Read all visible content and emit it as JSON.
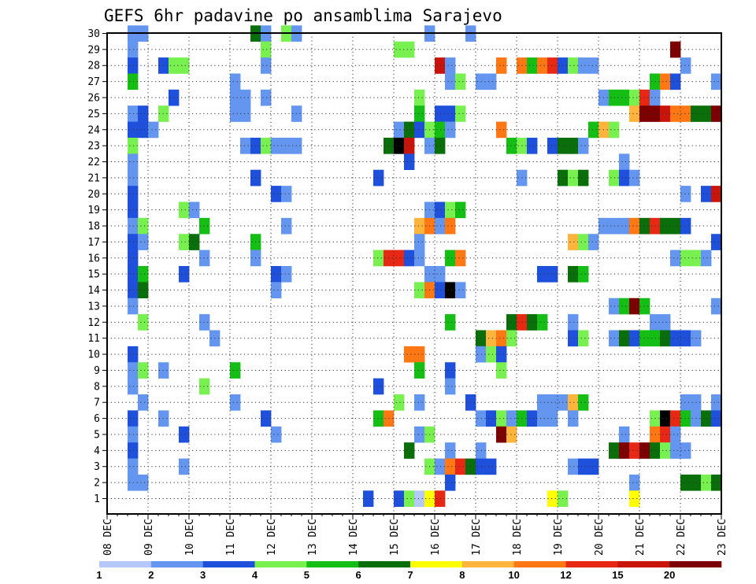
{
  "chart_data": {
    "type": "heatmap",
    "title": "GEFS 6hr padavine po ansamblima Sarajevo",
    "xlabel": "",
    "ylabel": "",
    "x_tick_labels": [
      "08 DEC",
      "09 DEC",
      "10 DEC",
      "11 DEC",
      "12 DEC",
      "13 DEC",
      "14 DEC",
      "15 DEC",
      "16 DEC",
      "17 DEC",
      "18 DEC",
      "19 DEC",
      "20 DEC",
      "21 DEC",
      "22 DEC",
      "23 DEC"
    ],
    "y_tick_labels": [
      "1",
      "2",
      "3",
      "4",
      "5",
      "6",
      "7",
      "8",
      "9",
      "10",
      "11",
      "12",
      "13",
      "14",
      "15",
      "16",
      "17",
      "18",
      "19",
      "20",
      "21",
      "22",
      "23",
      "24",
      "25",
      "26",
      "27",
      "28",
      "29",
      "30"
    ],
    "time_steps_per_day": 4,
    "grid": true,
    "legend": {
      "placement": "bottom",
      "labels": [
        "1",
        "2",
        "3",
        "4",
        "5",
        "6",
        "7",
        "8",
        "10",
        "12",
        "15",
        "20"
      ],
      "colors": [
        "#b4c8fa",
        "#6496f0",
        "#1e50dc",
        "#78f050",
        "#14be14",
        "#0a6e0a",
        "#ffff00",
        "#ffb43c",
        "#ff7814",
        "#e62814",
        "#c8140a",
        "#7d0000"
      ]
    },
    "cells": [
      [
        2,
        30,
        1
      ],
      [
        3,
        30,
        1
      ],
      [
        14,
        30,
        5
      ],
      [
        15,
        30,
        1
      ],
      [
        17,
        30,
        3
      ],
      [
        18,
        30,
        1
      ],
      [
        31,
        30,
        1
      ],
      [
        35,
        30,
        1
      ],
      [
        2,
        29,
        1
      ],
      [
        15,
        29,
        3
      ],
      [
        28,
        29,
        3
      ],
      [
        29,
        29,
        3
      ],
      [
        55,
        29,
        11
      ],
      [
        2,
        28,
        2
      ],
      [
        5,
        28,
        2
      ],
      [
        6,
        28,
        3
      ],
      [
        7,
        28,
        3
      ],
      [
        15,
        28,
        1
      ],
      [
        32,
        28,
        10
      ],
      [
        33,
        28,
        1
      ],
      [
        38,
        28,
        8
      ],
      [
        40,
        28,
        8
      ],
      [
        41,
        28,
        4
      ],
      [
        42,
        28,
        8
      ],
      [
        43,
        28,
        9
      ],
      [
        44,
        28,
        2
      ],
      [
        45,
        28,
        3
      ],
      [
        46,
        28,
        1
      ],
      [
        47,
        28,
        1
      ],
      [
        56,
        28,
        1
      ],
      [
        2,
        27,
        4
      ],
      [
        12,
        27,
        1
      ],
      [
        33,
        27,
        1
      ],
      [
        34,
        27,
        3
      ],
      [
        36,
        27,
        1
      ],
      [
        37,
        27,
        1
      ],
      [
        53,
        27,
        4
      ],
      [
        54,
        27,
        8
      ],
      [
        55,
        27,
        2
      ],
      [
        59,
        27,
        1
      ],
      [
        6,
        26,
        2
      ],
      [
        12,
        26,
        1
      ],
      [
        13,
        26,
        1
      ],
      [
        15,
        26,
        1
      ],
      [
        30,
        26,
        3
      ],
      [
        48,
        26,
        1
      ],
      [
        49,
        26,
        4
      ],
      [
        50,
        26,
        4
      ],
      [
        51,
        26,
        3
      ],
      [
        52,
        26,
        9
      ],
      [
        53,
        26,
        1
      ],
      [
        2,
        25,
        1
      ],
      [
        3,
        25,
        2
      ],
      [
        5,
        25,
        3
      ],
      [
        12,
        25,
        1
      ],
      [
        13,
        25,
        1
      ],
      [
        18,
        25,
        1
      ],
      [
        30,
        25,
        4
      ],
      [
        32,
        25,
        2
      ],
      [
        33,
        25,
        2
      ],
      [
        34,
        25,
        3
      ],
      [
        51,
        25,
        7
      ],
      [
        52,
        25,
        11
      ],
      [
        53,
        25,
        11
      ],
      [
        54,
        25,
        10
      ],
      [
        55,
        25,
        8
      ],
      [
        56,
        25,
        8
      ],
      [
        57,
        25,
        5
      ],
      [
        58,
        25,
        5
      ],
      [
        59,
        25,
        11
      ],
      [
        2,
        24,
        2
      ],
      [
        3,
        24,
        2
      ],
      [
        4,
        24,
        1
      ],
      [
        28,
        24,
        1
      ],
      [
        29,
        24,
        5
      ],
      [
        30,
        24,
        2
      ],
      [
        31,
        24,
        3
      ],
      [
        32,
        24,
        4
      ],
      [
        33,
        24,
        1
      ],
      [
        38,
        24,
        8
      ],
      [
        47,
        24,
        4
      ],
      [
        48,
        24,
        7
      ],
      [
        49,
        24,
        3
      ],
      [
        2,
        23,
        3
      ],
      [
        13,
        23,
        1
      ],
      [
        14,
        23,
        2
      ],
      [
        15,
        23,
        3
      ],
      [
        16,
        23,
        1
      ],
      [
        17,
        23,
        1
      ],
      [
        18,
        23,
        1
      ],
      [
        27,
        23,
        5
      ],
      [
        28,
        23,
        12
      ],
      [
        29,
        23,
        10
      ],
      [
        31,
        23,
        1
      ],
      [
        32,
        23,
        5
      ],
      [
        39,
        23,
        4
      ],
      [
        40,
        23,
        3
      ],
      [
        41,
        23,
        2
      ],
      [
        43,
        23,
        2
      ],
      [
        44,
        23,
        5
      ],
      [
        45,
        23,
        5
      ],
      [
        46,
        23,
        1
      ],
      [
        2,
        22,
        1
      ],
      [
        29,
        22,
        2
      ],
      [
        50,
        22,
        1
      ],
      [
        2,
        21,
        1
      ],
      [
        14,
        21,
        2
      ],
      [
        26,
        21,
        2
      ],
      [
        40,
        21,
        1
      ],
      [
        44,
        21,
        5
      ],
      [
        45,
        21,
        3
      ],
      [
        46,
        21,
        5
      ],
      [
        49,
        21,
        3
      ],
      [
        50,
        21,
        2
      ],
      [
        51,
        21,
        1
      ],
      [
        2,
        20,
        2
      ],
      [
        16,
        20,
        2
      ],
      [
        17,
        20,
        1
      ],
      [
        56,
        20,
        1
      ],
      [
        58,
        20,
        2
      ],
      [
        59,
        20,
        10
      ],
      [
        2,
        19,
        2
      ],
      [
        7,
        19,
        3
      ],
      [
        8,
        19,
        1
      ],
      [
        31,
        19,
        1
      ],
      [
        32,
        19,
        2
      ],
      [
        33,
        19,
        3
      ],
      [
        34,
        19,
        4
      ],
      [
        2,
        18,
        1
      ],
      [
        3,
        18,
        3
      ],
      [
        9,
        18,
        4
      ],
      [
        17,
        18,
        1
      ],
      [
        30,
        18,
        7
      ],
      [
        31,
        18,
        8
      ],
      [
        32,
        18,
        1
      ],
      [
        33,
        18,
        8
      ],
      [
        48,
        18,
        1
      ],
      [
        49,
        18,
        1
      ],
      [
        50,
        18,
        1
      ],
      [
        51,
        18,
        8
      ],
      [
        52,
        18,
        5
      ],
      [
        53,
        18,
        9
      ],
      [
        54,
        18,
        5
      ],
      [
        55,
        18,
        5
      ],
      [
        56,
        18,
        2
      ],
      [
        2,
        17,
        2
      ],
      [
        3,
        17,
        1
      ],
      [
        7,
        17,
        3
      ],
      [
        8,
        17,
        5
      ],
      [
        14,
        17,
        4
      ],
      [
        30,
        17,
        1
      ],
      [
        45,
        17,
        7
      ],
      [
        46,
        17,
        3
      ],
      [
        47,
        17,
        1
      ],
      [
        59,
        17,
        2
      ],
      [
        2,
        16,
        2
      ],
      [
        9,
        16,
        1
      ],
      [
        14,
        16,
        1
      ],
      [
        26,
        16,
        3
      ],
      [
        27,
        16,
        9
      ],
      [
        28,
        16,
        9
      ],
      [
        29,
        16,
        2
      ],
      [
        30,
        16,
        1
      ],
      [
        33,
        16,
        4
      ],
      [
        34,
        16,
        8
      ],
      [
        55,
        16,
        1
      ],
      [
        56,
        16,
        3
      ],
      [
        57,
        16,
        3
      ],
      [
        58,
        16,
        1
      ],
      [
        2,
        15,
        2
      ],
      [
        3,
        15,
        4
      ],
      [
        7,
        15,
        2
      ],
      [
        16,
        15,
        2
      ],
      [
        17,
        15,
        1
      ],
      [
        31,
        15,
        1
      ],
      [
        32,
        15,
        1
      ],
      [
        42,
        15,
        2
      ],
      [
        43,
        15,
        2
      ],
      [
        45,
        15,
        5
      ],
      [
        46,
        15,
        4
      ],
      [
        2,
        14,
        2
      ],
      [
        3,
        14,
        5
      ],
      [
        16,
        14,
        1
      ],
      [
        30,
        14,
        3
      ],
      [
        31,
        14,
        8
      ],
      [
        32,
        14,
        2
      ],
      [
        33,
        14,
        12
      ],
      [
        34,
        14,
        1
      ],
      [
        2,
        13,
        1
      ],
      [
        49,
        13,
        1
      ],
      [
        50,
        13,
        4
      ],
      [
        51,
        13,
        11
      ],
      [
        52,
        13,
        4
      ],
      [
        59,
        13,
        1
      ],
      [
        3,
        12,
        3
      ],
      [
        9,
        12,
        1
      ],
      [
        33,
        12,
        4
      ],
      [
        39,
        12,
        5
      ],
      [
        40,
        12,
        9
      ],
      [
        41,
        12,
        5
      ],
      [
        42,
        12,
        4
      ],
      [
        45,
        12,
        1
      ],
      [
        53,
        12,
        1
      ],
      [
        54,
        12,
        1
      ],
      [
        10,
        11,
        1
      ],
      [
        36,
        11,
        5
      ],
      [
        37,
        11,
        7
      ],
      [
        38,
        11,
        8
      ],
      [
        39,
        11,
        3
      ],
      [
        45,
        11,
        2
      ],
      [
        46,
        11,
        3
      ],
      [
        49,
        11,
        1
      ],
      [
        50,
        11,
        5
      ],
      [
        51,
        11,
        2
      ],
      [
        52,
        11,
        4
      ],
      [
        53,
        11,
        4
      ],
      [
        54,
        11,
        5
      ],
      [
        55,
        11,
        2
      ],
      [
        56,
        11,
        2
      ],
      [
        57,
        11,
        1
      ],
      [
        2,
        10,
        2
      ],
      [
        29,
        10,
        8
      ],
      [
        30,
        10,
        8
      ],
      [
        36,
        10,
        1
      ],
      [
        37,
        10,
        3
      ],
      [
        38,
        10,
        2
      ],
      [
        2,
        9,
        1
      ],
      [
        3,
        9,
        3
      ],
      [
        5,
        9,
        1
      ],
      [
        12,
        9,
        4
      ],
      [
        30,
        9,
        4
      ],
      [
        33,
        9,
        2
      ],
      [
        38,
        9,
        3
      ],
      [
        2,
        8,
        1
      ],
      [
        9,
        8,
        3
      ],
      [
        26,
        8,
        2
      ],
      [
        33,
        8,
        1
      ],
      [
        3,
        7,
        1
      ],
      [
        12,
        7,
        1
      ],
      [
        28,
        7,
        3
      ],
      [
        30,
        7,
        1
      ],
      [
        35,
        7,
        2
      ],
      [
        42,
        7,
        1
      ],
      [
        43,
        7,
        1
      ],
      [
        44,
        7,
        1
      ],
      [
        45,
        7,
        7
      ],
      [
        46,
        7,
        4
      ],
      [
        56,
        7,
        1
      ],
      [
        57,
        7,
        1
      ],
      [
        59,
        7,
        1
      ],
      [
        2,
        6,
        2
      ],
      [
        5,
        6,
        1
      ],
      [
        15,
        6,
        2
      ],
      [
        26,
        6,
        4
      ],
      [
        27,
        6,
        8
      ],
      [
        36,
        6,
        1
      ],
      [
        37,
        6,
        2
      ],
      [
        38,
        6,
        3
      ],
      [
        39,
        6,
        1
      ],
      [
        40,
        6,
        4
      ],
      [
        41,
        6,
        2
      ],
      [
        42,
        6,
        1
      ],
      [
        43,
        6,
        1
      ],
      [
        45,
        6,
        1
      ],
      [
        53,
        6,
        3
      ],
      [
        54,
        6,
        12
      ],
      [
        55,
        6,
        9
      ],
      [
        56,
        6,
        4
      ],
      [
        57,
        6,
        1
      ],
      [
        58,
        6,
        5
      ],
      [
        59,
        6,
        2
      ],
      [
        2,
        5,
        1
      ],
      [
        7,
        5,
        2
      ],
      [
        16,
        5,
        1
      ],
      [
        30,
        5,
        1
      ],
      [
        31,
        5,
        3
      ],
      [
        38,
        5,
        11
      ],
      [
        39,
        5,
        7
      ],
      [
        50,
        5,
        1
      ],
      [
        53,
        5,
        8
      ],
      [
        54,
        5,
        9
      ],
      [
        55,
        5,
        1
      ],
      [
        2,
        4,
        2
      ],
      [
        29,
        4,
        5
      ],
      [
        33,
        4,
        1
      ],
      [
        36,
        4,
        1
      ],
      [
        49,
        4,
        5
      ],
      [
        50,
        4,
        11
      ],
      [
        51,
        4,
        9
      ],
      [
        52,
        4,
        11
      ],
      [
        53,
        4,
        5
      ],
      [
        54,
        4,
        3
      ],
      [
        55,
        4,
        1
      ],
      [
        56,
        4,
        1
      ],
      [
        2,
        3,
        1
      ],
      [
        7,
        3,
        1
      ],
      [
        31,
        3,
        3
      ],
      [
        32,
        3,
        1
      ],
      [
        33,
        3,
        8
      ],
      [
        34,
        3,
        9
      ],
      [
        35,
        3,
        5
      ],
      [
        36,
        3,
        2
      ],
      [
        37,
        3,
        2
      ],
      [
        45,
        3,
        1
      ],
      [
        46,
        3,
        2
      ],
      [
        47,
        3,
        2
      ],
      [
        2,
        2,
        1
      ],
      [
        3,
        2,
        1
      ],
      [
        33,
        2,
        2
      ],
      [
        51,
        2,
        1
      ],
      [
        56,
        2,
        5
      ],
      [
        57,
        2,
        5
      ],
      [
        58,
        2,
        3
      ],
      [
        59,
        2,
        5
      ],
      [
        25,
        1,
        2
      ],
      [
        28,
        1,
        2
      ],
      [
        29,
        1,
        3
      ],
      [
        30,
        1,
        0
      ],
      [
        31,
        1,
        6
      ],
      [
        32,
        1,
        9
      ],
      [
        43,
        1,
        6
      ],
      [
        44,
        1,
        3
      ],
      [
        51,
        1,
        6
      ]
    ]
  }
}
